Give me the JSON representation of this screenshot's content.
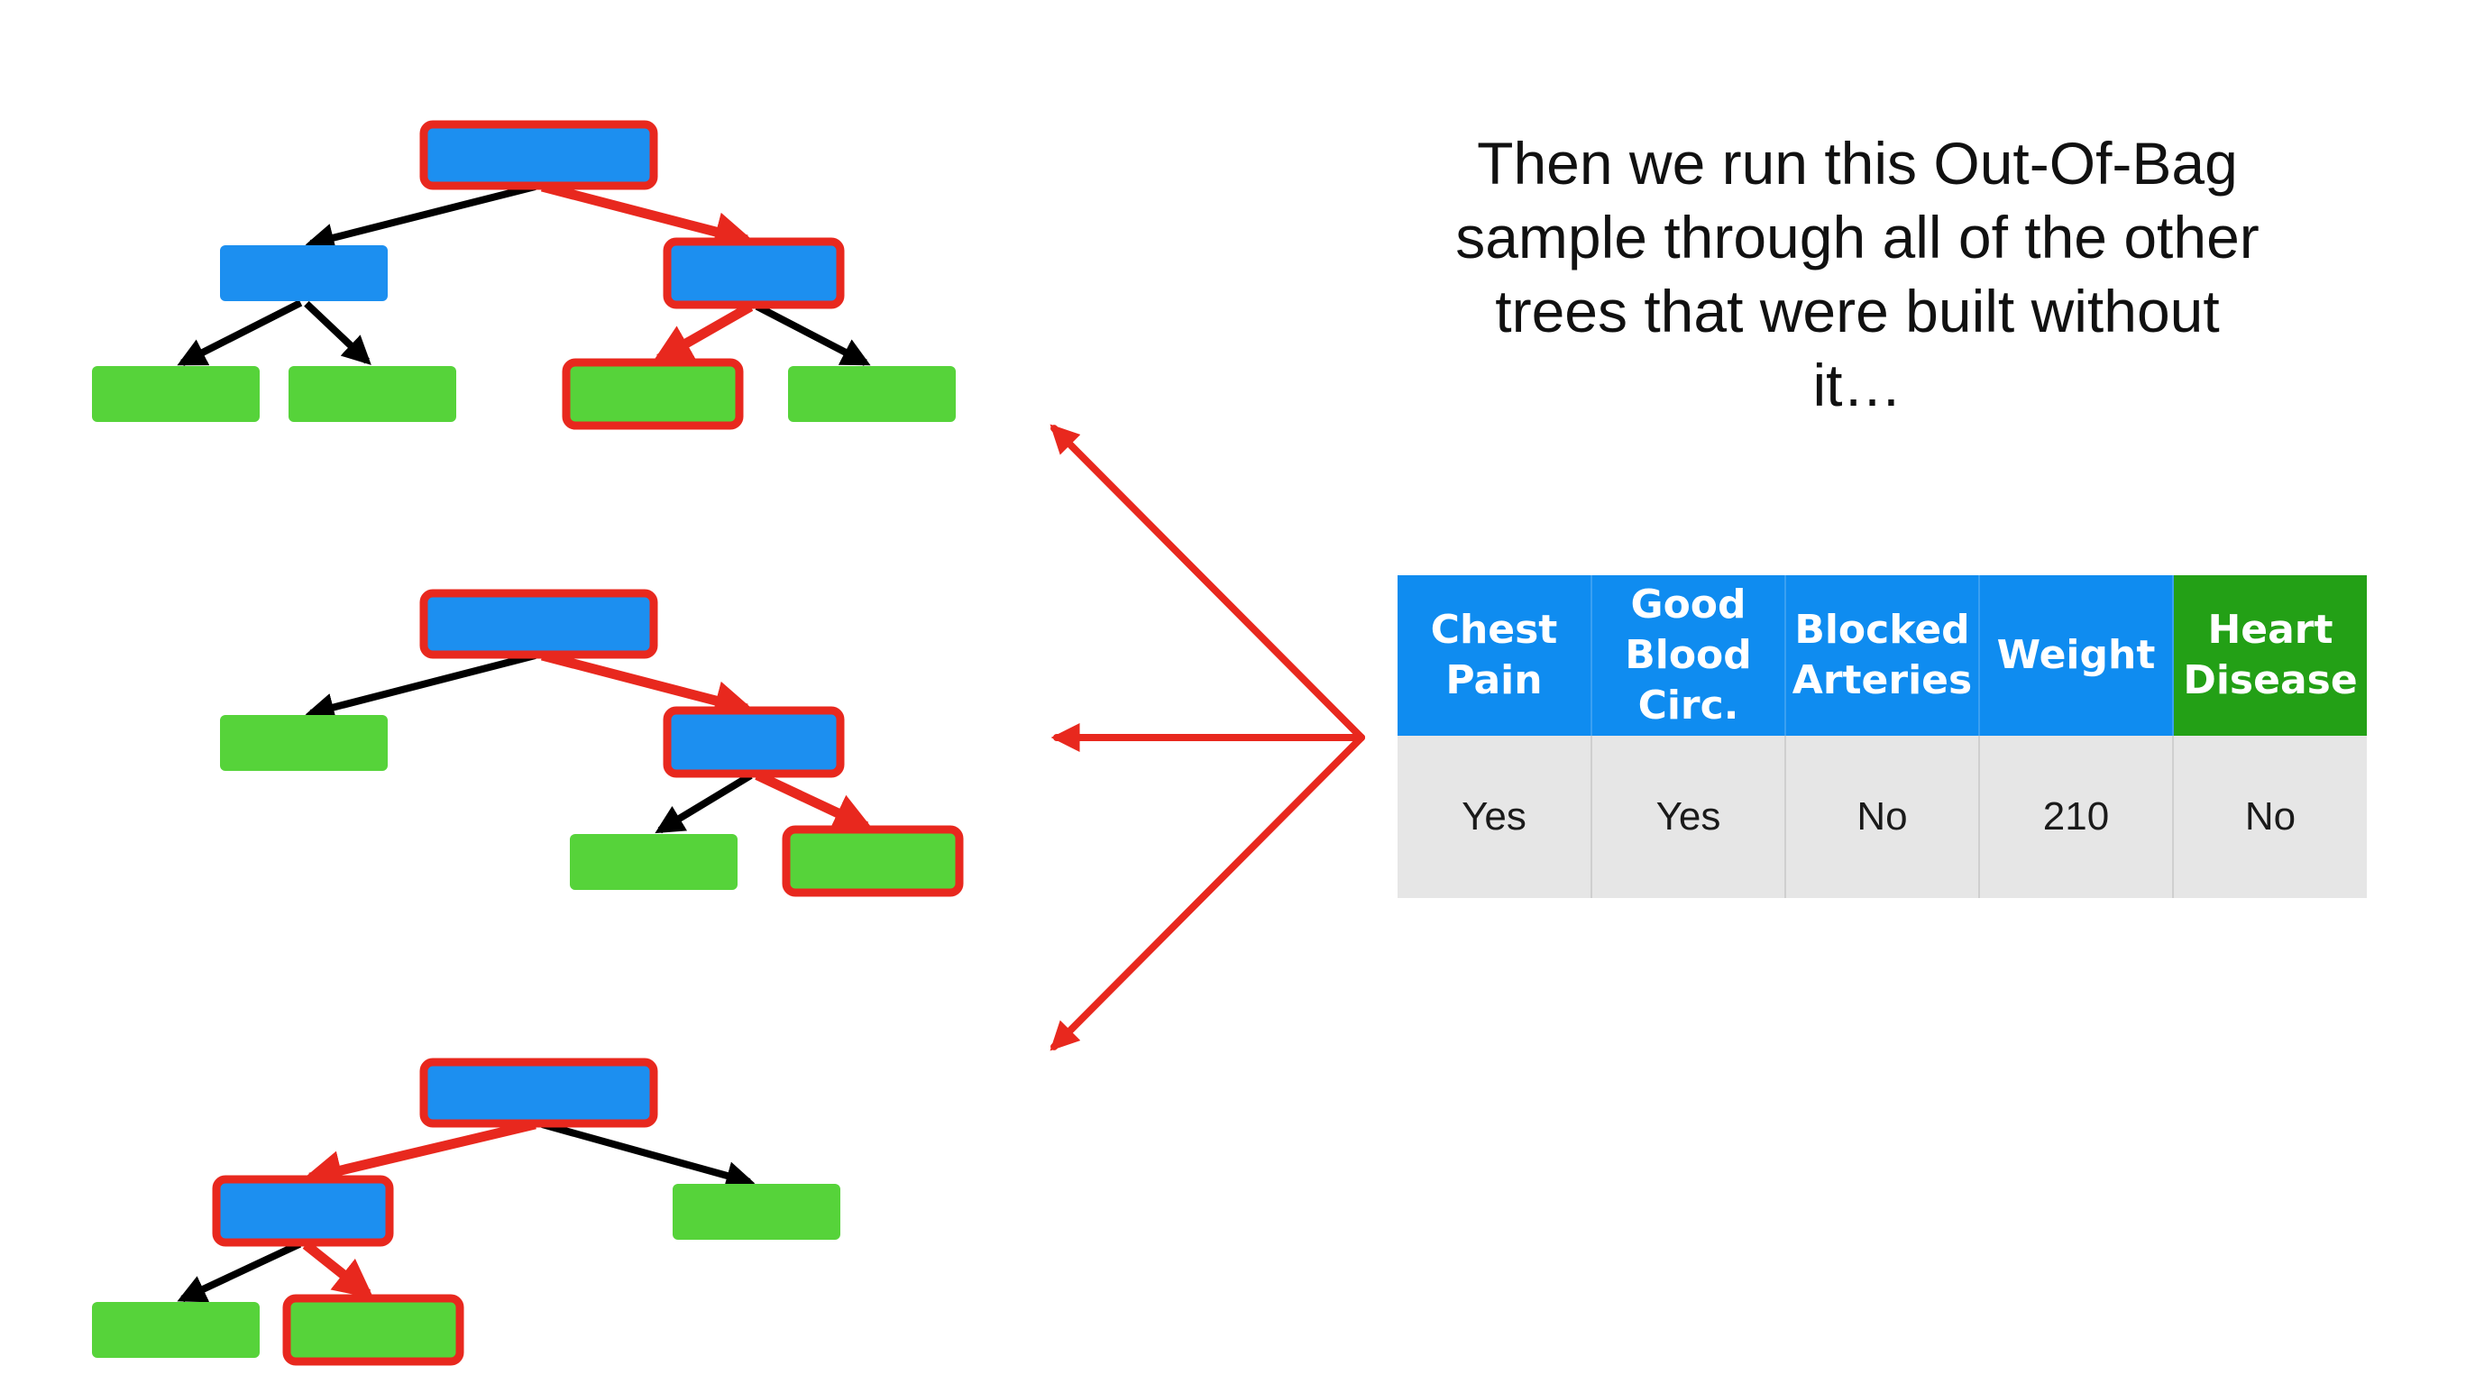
{
  "caption": "Then we run this Out-Of-Bag sample through all of the other trees that were built without it…",
  "table": {
    "headers": [
      "Chest Pain",
      "Good Blood Circ.",
      "Blocked Arteries",
      "Weight",
      "Heart Disease"
    ],
    "row": [
      "Yes",
      "Yes",
      "No",
      "210",
      "No"
    ]
  },
  "colors": {
    "internal_node": "#1c8ff0",
    "leaf_node": "#56d33a",
    "path_highlight": "#e8281e",
    "edge": "#000000",
    "header_feature": "#0f8cf0",
    "header_label": "#23a016",
    "row_background": "#e6e6e6"
  },
  "trees": [
    {
      "name": "tree-1",
      "nodes": [
        {
          "id": "root",
          "kind": "internal",
          "on_path": true
        },
        {
          "id": "left",
          "kind": "internal",
          "on_path": false
        },
        {
          "id": "right",
          "kind": "internal",
          "on_path": true
        },
        {
          "id": "ll",
          "kind": "leaf",
          "on_path": false
        },
        {
          "id": "lr",
          "kind": "leaf",
          "on_path": false
        },
        {
          "id": "rl",
          "kind": "leaf",
          "on_path": true
        },
        {
          "id": "rr",
          "kind": "leaf",
          "on_path": false
        }
      ],
      "edges": [
        {
          "from": "root",
          "to": "left",
          "on_path": false
        },
        {
          "from": "root",
          "to": "right",
          "on_path": true
        },
        {
          "from": "left",
          "to": "ll",
          "on_path": false
        },
        {
          "from": "left",
          "to": "lr",
          "on_path": false
        },
        {
          "from": "right",
          "to": "rl",
          "on_path": true
        },
        {
          "from": "right",
          "to": "rr",
          "on_path": false
        }
      ]
    },
    {
      "name": "tree-2",
      "nodes": [
        {
          "id": "root",
          "kind": "internal",
          "on_path": true
        },
        {
          "id": "left",
          "kind": "leaf",
          "on_path": false
        },
        {
          "id": "right",
          "kind": "internal",
          "on_path": true
        },
        {
          "id": "rl",
          "kind": "leaf",
          "on_path": false
        },
        {
          "id": "rr",
          "kind": "leaf",
          "on_path": true
        }
      ],
      "edges": [
        {
          "from": "root",
          "to": "left",
          "on_path": false
        },
        {
          "from": "root",
          "to": "right",
          "on_path": true
        },
        {
          "from": "right",
          "to": "rl",
          "on_path": false
        },
        {
          "from": "right",
          "to": "rr",
          "on_path": true
        }
      ]
    },
    {
      "name": "tree-3",
      "nodes": [
        {
          "id": "root",
          "kind": "internal",
          "on_path": true
        },
        {
          "id": "left",
          "kind": "internal",
          "on_path": true
        },
        {
          "id": "right",
          "kind": "leaf",
          "on_path": false
        },
        {
          "id": "ll",
          "kind": "leaf",
          "on_path": false
        },
        {
          "id": "lr",
          "kind": "leaf",
          "on_path": true
        }
      ],
      "edges": [
        {
          "from": "root",
          "to": "left",
          "on_path": true
        },
        {
          "from": "root",
          "to": "right",
          "on_path": false
        },
        {
          "from": "left",
          "to": "ll",
          "on_path": false
        },
        {
          "from": "left",
          "to": "lr",
          "on_path": true
        }
      ]
    }
  ]
}
